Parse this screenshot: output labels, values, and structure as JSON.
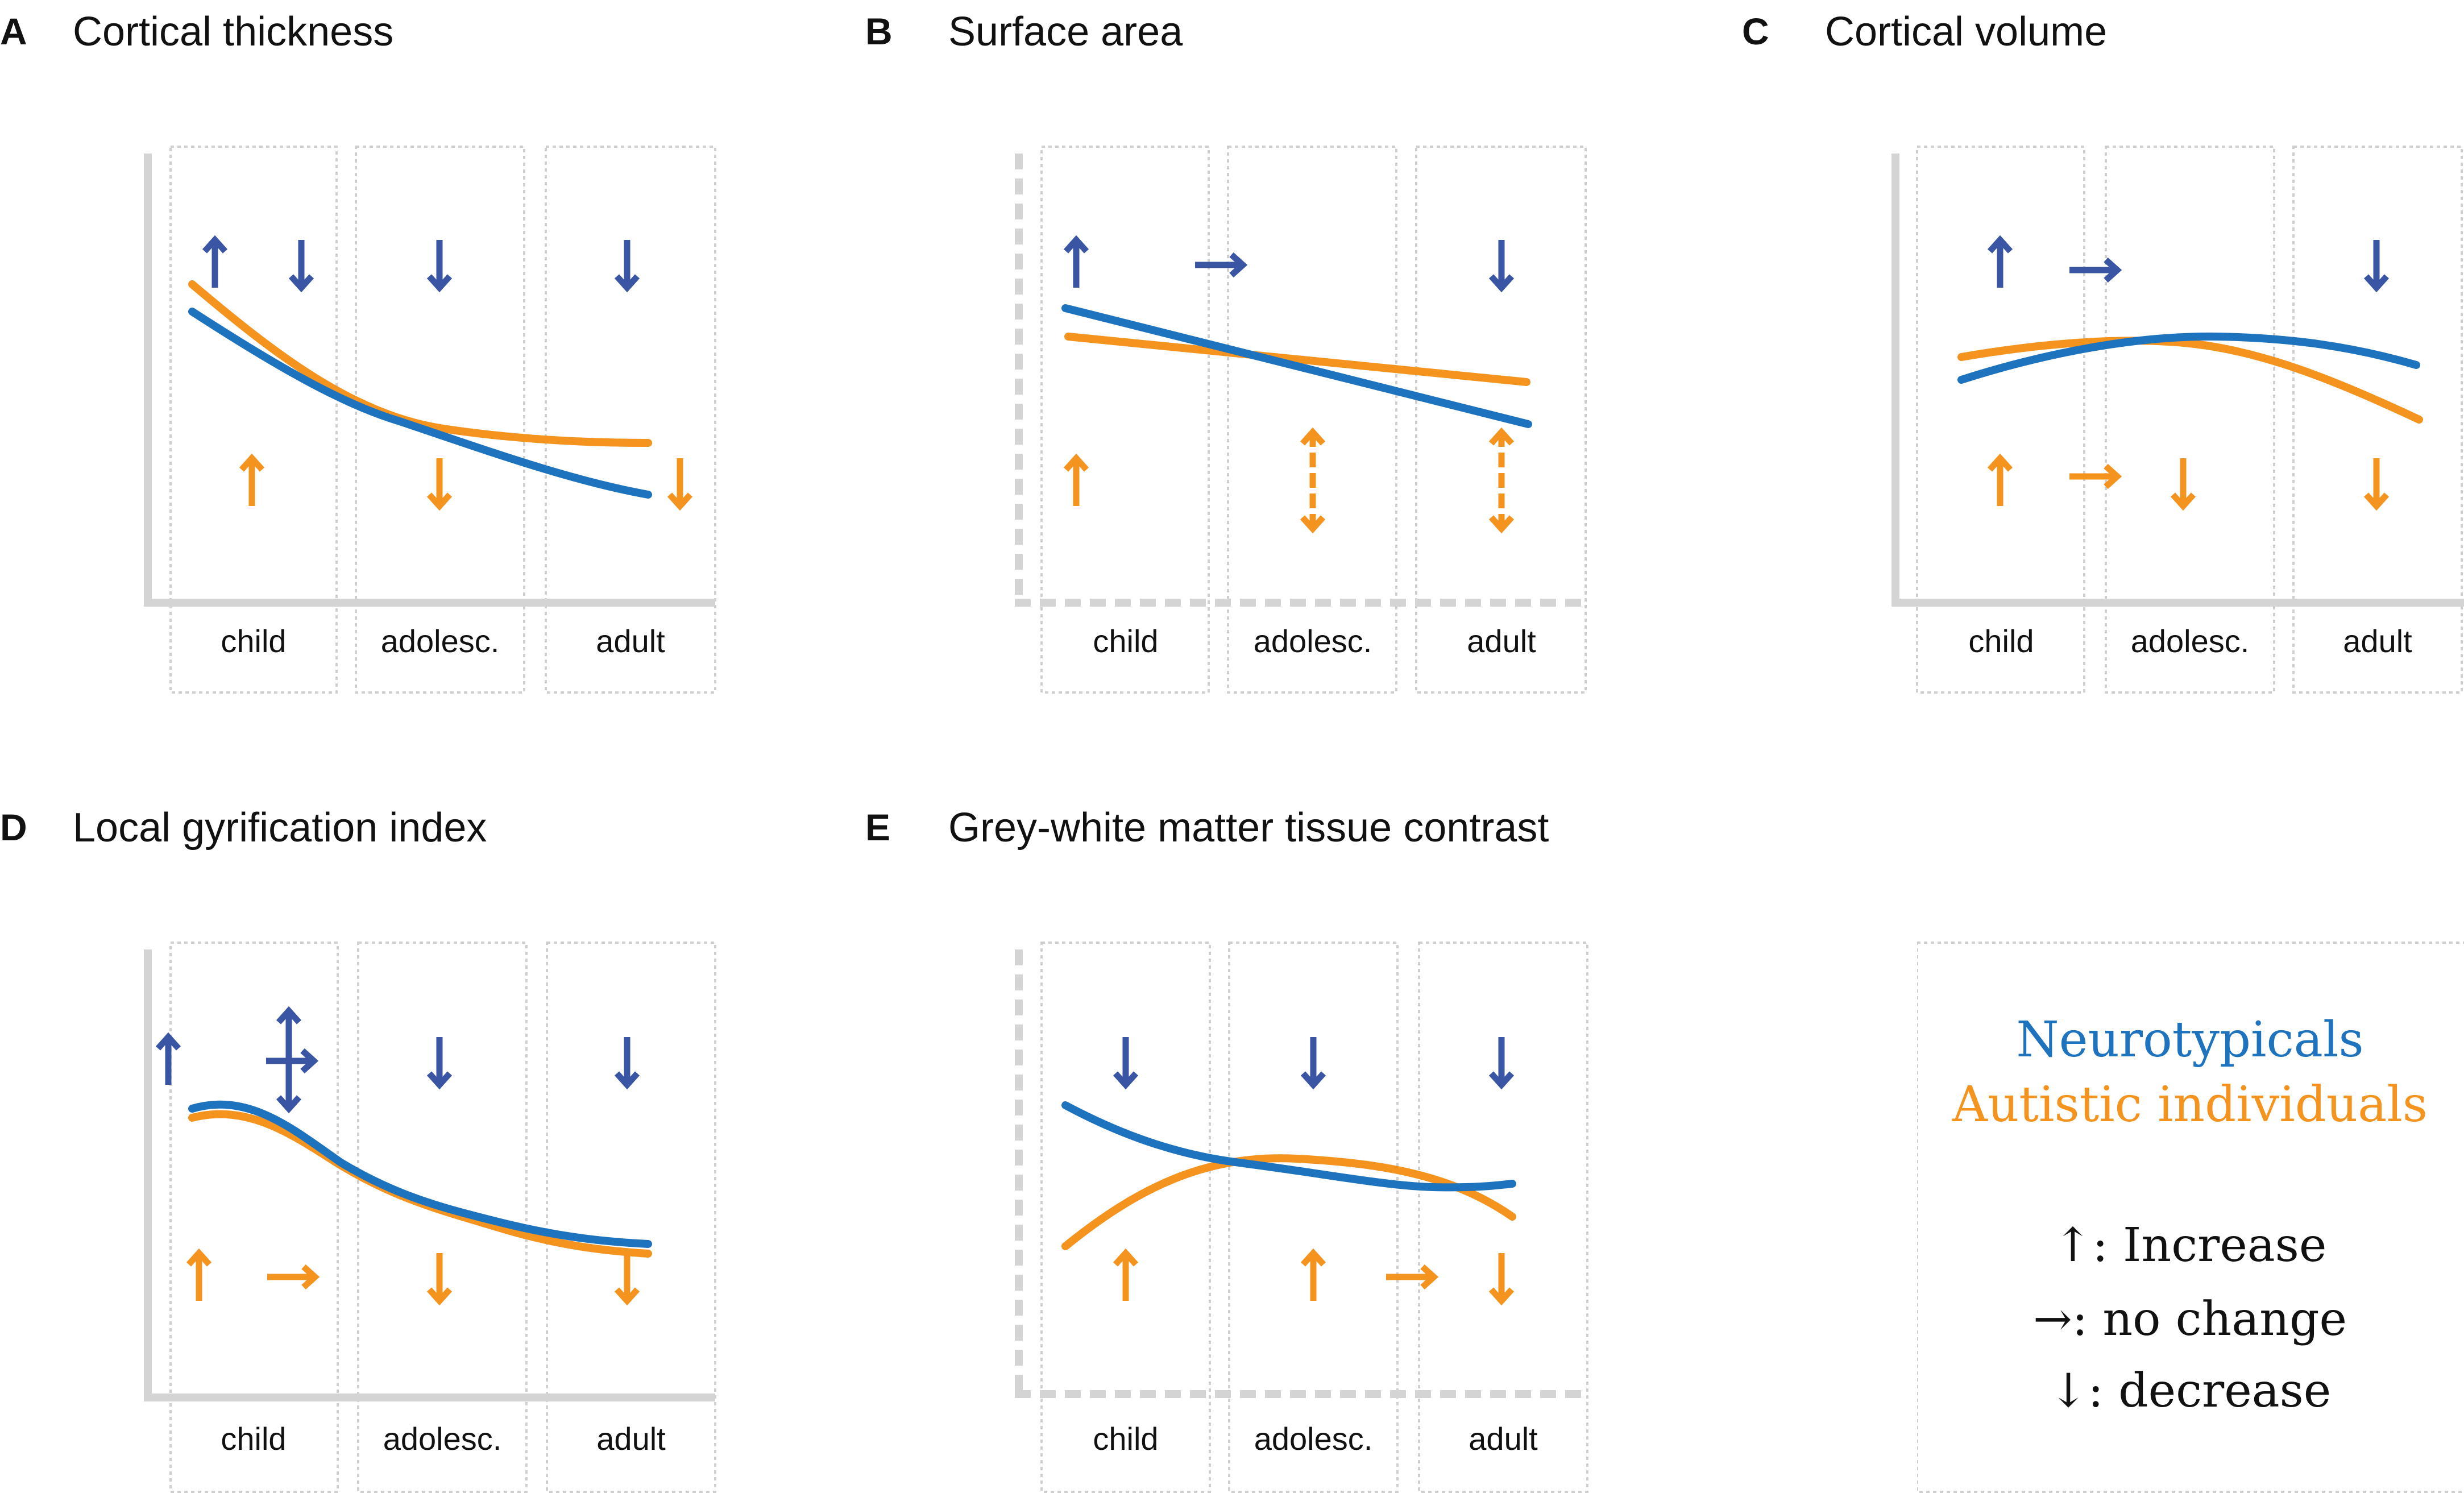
{
  "figure": {
    "colors": {
      "neurotypical": "#1e73be",
      "autistic": "#f4931e",
      "arrow_neurotypical": "#3a55a4",
      "arrow_autistic": "#f4931e",
      "axis": "#d4d4d4",
      "box": "#cfcfcf"
    },
    "age_groups": [
      "child",
      "adolesc.",
      "adult"
    ],
    "panels": [
      {
        "letter": "A",
        "title": "Cortical thickness",
        "neurotypical_arrows": [
          [
            "up",
            "down"
          ],
          [
            "down"
          ],
          [
            "down"
          ]
        ],
        "autistic_arrows": [
          [
            "up"
          ],
          [
            "down"
          ],
          [
            "down"
          ]
        ],
        "curves": {
          "neurotypical": [
            0.72,
            0.52,
            0.43,
            0.38
          ],
          "autistic": [
            0.78,
            0.52,
            0.36,
            0.26
          ]
        }
      },
      {
        "letter": "B",
        "title": "Surface area",
        "neurotypical_arrows": [
          [
            "up"
          ],
          [
            "right"
          ],
          [
            "down"
          ]
        ],
        "autistic_arrows": [
          [
            "up"
          ],
          [
            "updown"
          ],
          [
            "updown"
          ]
        ],
        "curves": {
          "neurotypical": [
            0.68,
            0.6,
            0.51,
            0.42
          ],
          "autistic": [
            0.62,
            0.59,
            0.56,
            0.53
          ]
        }
      },
      {
        "letter": "C",
        "title": "Cortical volume",
        "neurotypical_arrows": [
          [
            "up",
            "right"
          ],
          [
            "down"
          ],
          [
            "down"
          ]
        ],
        "autistic_arrows": [
          [
            "up",
            "right"
          ],
          [
            "down"
          ],
          [
            "down"
          ]
        ],
        "curves": {
          "neurotypical": [
            0.53,
            0.58,
            0.6,
            0.56
          ],
          "autistic": [
            0.56,
            0.59,
            0.54,
            0.42
          ]
        }
      },
      {
        "letter": "D",
        "title": "Local gyrification index",
        "neurotypical_arrows": [
          [
            "up",
            "updown"
          ],
          [
            "down"
          ],
          [
            "down"
          ]
        ],
        "autistic_arrows": [
          [
            "up",
            "right"
          ],
          [
            "down"
          ],
          [
            "down"
          ]
        ],
        "curves": {
          "neurotypical": [
            0.62,
            0.45,
            0.36,
            0.33
          ],
          "autistic": [
            0.61,
            0.45,
            0.35,
            0.31
          ]
        }
      },
      {
        "letter": "E",
        "title": "Grey-white matter tissue contrast",
        "neurotypical_arrows": [
          [
            "down"
          ],
          [
            "down"
          ],
          [
            "down"
          ]
        ],
        "autistic_arrows": [
          [
            "up"
          ],
          [
            "up",
            "right"
          ],
          [
            "down"
          ]
        ],
        "curves": {
          "neurotypical": [
            0.6,
            0.51,
            0.47,
            0.48
          ],
          "autistic": [
            0.33,
            0.52,
            0.5,
            0.38
          ]
        }
      }
    ],
    "legend": {
      "neurotypical_label": "Neurotypicals",
      "autistic_label": "Autistic individuals",
      "increase": "↑: Increase",
      "no_change": "→: no change",
      "decrease": "↓: decrease"
    }
  }
}
